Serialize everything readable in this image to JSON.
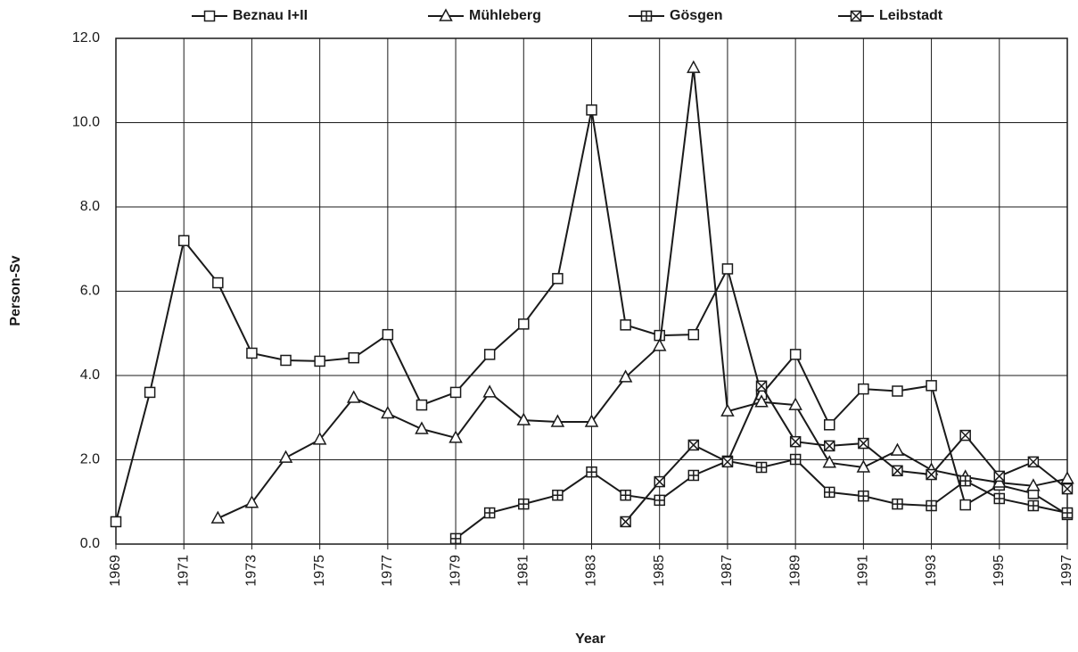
{
  "chart_data": {
    "type": "line",
    "xlabel": "Year",
    "ylabel": "Person-Sv",
    "xlim": [
      1969,
      1997
    ],
    "xticks": [
      1969,
      1971,
      1973,
      1975,
      1977,
      1979,
      1981,
      1983,
      1985,
      1987,
      1989,
      1991,
      1993,
      1995,
      1997
    ],
    "ylim": [
      0,
      12
    ],
    "yticks": [
      {
        "value": 0,
        "label": "0.0"
      },
      {
        "value": 2,
        "label": "2.0"
      },
      {
        "value": 4,
        "label": "4.0"
      },
      {
        "value": 6,
        "label": "6.0"
      },
      {
        "value": 8,
        "label": "8.0"
      },
      {
        "value": 10,
        "label": "10.0"
      },
      {
        "value": 12,
        "label": "12.0"
      }
    ],
    "grid": true,
    "legend": "top",
    "series": [
      {
        "name": "Beznau I+II",
        "color": "#1a1a1a",
        "marker": "square",
        "x": [
          1969,
          1970,
          1971,
          1972,
          1973,
          1974,
          1975,
          1976,
          1977,
          1978,
          1979,
          1980,
          1981,
          1982,
          1983,
          1984,
          1985,
          1986,
          1987,
          1988,
          1989,
          1990,
          1991,
          1992,
          1993,
          1994,
          1995,
          1996,
          1997
        ],
        "values": [
          0.53,
          3.6,
          7.2,
          6.2,
          4.53,
          4.36,
          4.34,
          4.42,
          4.97,
          3.3,
          3.6,
          4.5,
          5.22,
          6.3,
          10.3,
          5.2,
          4.95,
          4.97,
          6.53,
          3.55,
          4.5,
          2.83,
          3.68,
          3.63,
          3.76,
          0.93,
          1.4,
          1.2,
          0.7
        ]
      },
      {
        "name": "Mühleberg",
        "color": "#1a1a1a",
        "marker": "triangle",
        "x": [
          1972,
          1973,
          1974,
          1975,
          1976,
          1977,
          1978,
          1979,
          1980,
          1981,
          1982,
          1983,
          1984,
          1985,
          1986,
          1987,
          1988,
          1989,
          1990,
          1991,
          1992,
          1993,
          1994,
          1995,
          1996,
          1997
        ],
        "values": [
          0.61,
          0.98,
          2.05,
          2.48,
          3.47,
          3.1,
          2.73,
          2.52,
          3.6,
          2.94,
          2.9,
          2.9,
          3.96,
          4.7,
          11.3,
          3.15,
          3.37,
          3.3,
          1.93,
          1.82,
          2.22,
          1.76,
          1.59,
          1.46,
          1.38,
          1.55
        ]
      },
      {
        "name": "Gösgen",
        "color": "#1a1a1a",
        "marker": "square-plus",
        "x": [
          1979,
          1980,
          1981,
          1982,
          1983,
          1984,
          1985,
          1986,
          1987,
          1988,
          1989,
          1990,
          1991,
          1992,
          1993,
          1994,
          1995,
          1996,
          1997
        ],
        "values": [
          0.13,
          0.74,
          0.95,
          1.16,
          1.71,
          1.16,
          1.04,
          1.63,
          1.97,
          1.82,
          2.01,
          1.23,
          1.14,
          0.95,
          0.91,
          1.5,
          1.08,
          0.91,
          0.74
        ]
      },
      {
        "name": "Leibstadt",
        "color": "#1a1a1a",
        "marker": "square-x",
        "x": [
          1984,
          1985,
          1986,
          1987,
          1988,
          1989,
          1990,
          1991,
          1992,
          1993,
          1994,
          1995,
          1996,
          1997
        ],
        "values": [
          0.53,
          1.48,
          2.35,
          1.95,
          3.75,
          2.43,
          2.33,
          2.39,
          1.74,
          1.65,
          2.58,
          1.61,
          1.95,
          1.31
        ]
      }
    ]
  }
}
